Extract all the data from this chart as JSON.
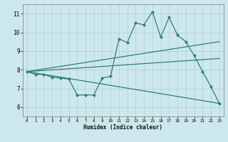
{
  "title": "",
  "xlabel": "Humidex (Indice chaleur)",
  "xlim": [
    -0.5,
    23.5
  ],
  "ylim": [
    5.5,
    11.5
  ],
  "yticks": [
    6,
    7,
    8,
    9,
    10,
    11
  ],
  "xticks": [
    0,
    1,
    2,
    3,
    4,
    5,
    6,
    7,
    8,
    9,
    10,
    11,
    12,
    13,
    14,
    15,
    16,
    17,
    18,
    19,
    20,
    21,
    22,
    23
  ],
  "bg_color": "#cde8ec",
  "line_color": "#2e7d78",
  "grid_color": "#aecfd4",
  "line_data": [
    {
      "x": [
        0,
        1,
        2,
        3,
        4,
        5,
        6,
        7,
        8,
        9,
        10,
        11,
        12,
        13,
        14,
        15,
        16,
        17,
        18,
        19,
        20,
        21,
        22,
        23
      ],
      "y": [
        7.9,
        7.75,
        7.75,
        7.6,
        7.55,
        7.5,
        6.65,
        6.65,
        6.65,
        7.55,
        7.65,
        9.65,
        9.45,
        10.5,
        10.4,
        11.1,
        9.75,
        10.8,
        9.85,
        9.5,
        8.75,
        7.9,
        7.1,
        6.2
      ],
      "marker": "D",
      "markersize": 2.2,
      "linewidth": 0.9
    },
    {
      "x": [
        0,
        23
      ],
      "y": [
        7.9,
        9.5
      ],
      "marker": null,
      "markersize": 0,
      "linewidth": 0.9
    },
    {
      "x": [
        0,
        23
      ],
      "y": [
        7.9,
        8.6
      ],
      "marker": null,
      "markersize": 0,
      "linewidth": 0.9
    },
    {
      "x": [
        0,
        23
      ],
      "y": [
        7.9,
        6.2
      ],
      "marker": null,
      "markersize": 0,
      "linewidth": 0.9
    }
  ]
}
